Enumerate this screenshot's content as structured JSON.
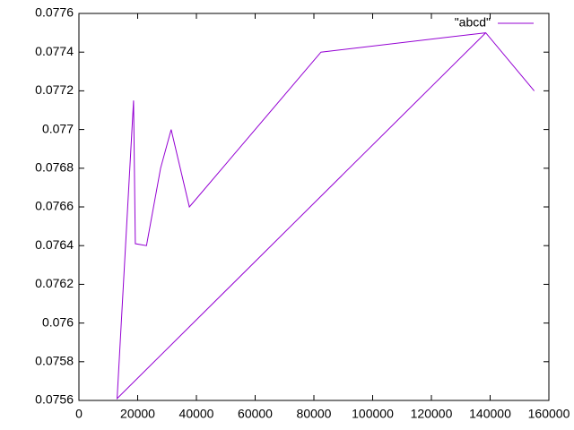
{
  "chart_data": {
    "type": "line",
    "x": [
      155000,
      138500,
      13000,
      18600,
      19200,
      23000,
      27800,
      31400,
      37600,
      82400,
      138500
    ],
    "series": [
      {
        "name": "\"abcd\"",
        "color": "#9400d3",
        "values": [
          0.0772,
          0.0775,
          0.07561,
          0.07715,
          0.07641,
          0.0764,
          0.0768,
          0.077,
          0.0766,
          0.0774,
          0.0775
        ]
      }
    ],
    "xlim": [
      0,
      160000
    ],
    "xticks": [
      0,
      20000,
      40000,
      60000,
      80000,
      100000,
      120000,
      140000,
      160000
    ],
    "ylim": [
      0.0756,
      0.0776
    ],
    "yticks": [
      0.0756,
      0.0758,
      0.076,
      0.0762,
      0.0764,
      0.0766,
      0.0768,
      0.077,
      0.0772,
      0.0774,
      0.0776
    ],
    "grid": false,
    "legend": "top right"
  }
}
